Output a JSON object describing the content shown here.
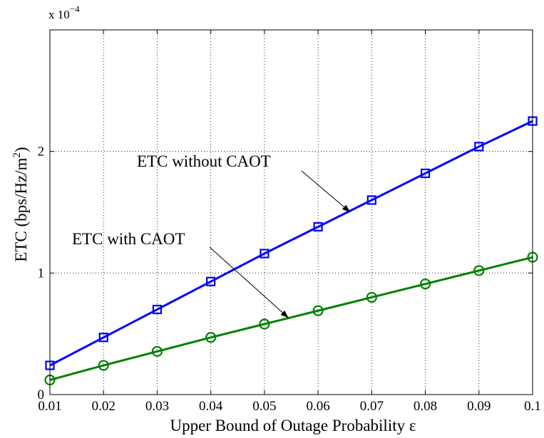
{
  "chart_data": {
    "type": "line",
    "title": "",
    "xlabel": "Upper Bound of Outage Probability ε",
    "ylabel": "ETC (bps/Hz/m²)",
    "ylabel_parts": {
      "main": "ETC (bps/Hz/m",
      "sup": "2",
      "close": ")"
    },
    "y_scale_multiplier": {
      "base": "x 10",
      "exponent": "−4"
    },
    "xlim": [
      0.01,
      0.1
    ],
    "ylim": [
      0,
      3
    ],
    "x": [
      0.01,
      0.02,
      0.03,
      0.04,
      0.05,
      0.06,
      0.07,
      0.08,
      0.09,
      0.1
    ],
    "xticks": [
      {
        "value": 0.01,
        "label": "0.01"
      },
      {
        "value": 0.02,
        "label": "0.02"
      },
      {
        "value": 0.03,
        "label": "0.03"
      },
      {
        "value": 0.04,
        "label": "0.04"
      },
      {
        "value": 0.05,
        "label": "0.05"
      },
      {
        "value": 0.06,
        "label": "0.06"
      },
      {
        "value": 0.07,
        "label": "0.07"
      },
      {
        "value": 0.08,
        "label": "0.08"
      },
      {
        "value": 0.09,
        "label": "0.09"
      },
      {
        "value": 0.1,
        "label": "0.1"
      }
    ],
    "yticks": [
      {
        "value": 0,
        "label": "0"
      },
      {
        "value": 1,
        "label": "1"
      },
      {
        "value": 2,
        "label": "2"
      }
    ],
    "grid": true,
    "series": [
      {
        "name": "ETC without CAOT",
        "color": "#0000ff",
        "marker": "square",
        "values": [
          0.24,
          0.47,
          0.7,
          0.93,
          1.16,
          1.38,
          1.6,
          1.82,
          2.04,
          2.25
        ]
      },
      {
        "name": "ETC with CAOT",
        "color": "#008000",
        "marker": "circle",
        "values": [
          0.12,
          0.24,
          0.355,
          0.47,
          0.58,
          0.69,
          0.8,
          0.91,
          1.02,
          1.13
        ]
      }
    ],
    "annotations": [
      {
        "text": "ETC without CAOT",
        "series": 0,
        "arrow_to_x": 0.066,
        "arrow_to_y": 1.5
      },
      {
        "text": "ETC with CAOT",
        "series": 1,
        "arrow_to_x": 0.0545,
        "arrow_to_y": 0.63
      }
    ]
  }
}
